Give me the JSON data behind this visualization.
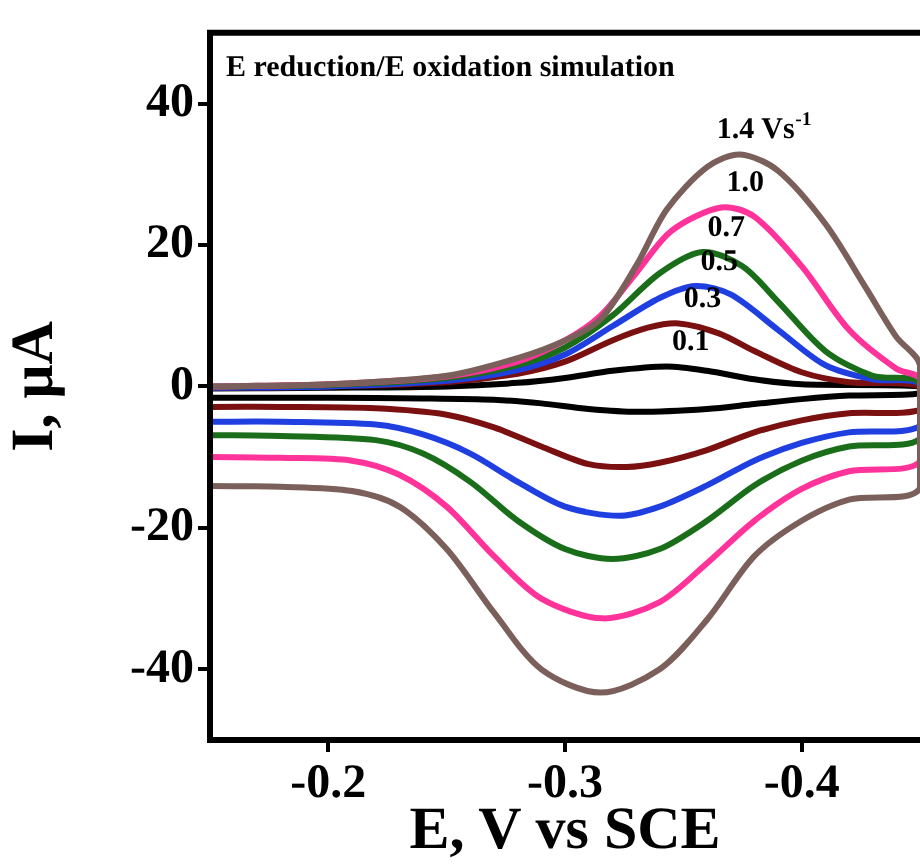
{
  "chart_data": {
    "type": "line",
    "title": "E reduction/E oxidation simulation",
    "xlabel": "E, V vs SCE",
    "ylabel": "I, μA",
    "xlim": [
      -0.15,
      -0.45
    ],
    "xticks": [
      -0.2,
      -0.3,
      -0.4
    ],
    "ylim": [
      -50,
      50
    ],
    "yticks": [
      -40,
      -20,
      0,
      20,
      40
    ],
    "grid": false,
    "legend": false,
    "marker": "none",
    "line_style": "solid",
    "series": [
      {
        "name": "1.4 Vs$^{-1}$",
        "color": "#7b5f5a",
        "x": [
          -0.15,
          -0.2,
          -0.25,
          -0.28,
          -0.3,
          -0.315,
          -0.33,
          -0.343,
          -0.36,
          -0.374,
          -0.39,
          -0.41,
          -0.427,
          -0.44,
          -0.45,
          -0.45,
          -0.42,
          -0.4,
          -0.38,
          -0.36,
          -0.34,
          -0.315,
          -0.29,
          -0.27,
          -0.25,
          -0.23,
          -0.21,
          -0.18,
          -0.15
        ],
        "values": [
          0,
          0.3,
          1.5,
          4,
          6.5,
          9.5,
          17,
          25,
          31,
          32.8,
          30.5,
          23,
          14,
          7,
          3,
          -14.4,
          -16,
          -19,
          -24,
          -33,
          -40,
          -43.3,
          -40,
          -32,
          -23,
          -17,
          -14.8,
          -14.2,
          -14.1
        ]
      },
      {
        "name": "1.0",
        "color": "#ff3399",
        "x": [
          -0.15,
          -0.2,
          -0.25,
          -0.28,
          -0.3,
          -0.315,
          -0.33,
          -0.345,
          -0.366,
          -0.38,
          -0.4,
          -0.42,
          -0.44,
          -0.45,
          -0.45,
          -0.42,
          -0.4,
          -0.38,
          -0.36,
          -0.34,
          -0.316,
          -0.29,
          -0.27,
          -0.25,
          -0.23,
          -0.21,
          -0.18,
          -0.15
        ],
        "values": [
          0,
          0.3,
          1.4,
          3.5,
          6.5,
          10,
          16,
          22,
          25.3,
          24,
          17,
          8,
          2.5,
          1,
          -10.6,
          -12,
          -14.5,
          -19,
          -25,
          -30.5,
          -32.8,
          -30,
          -24,
          -17,
          -12.5,
          -10.5,
          -10.1,
          -10
        ]
      },
      {
        "name": "0.7",
        "color": "#1a6e1a",
        "x": [
          -0.15,
          -0.2,
          -0.25,
          -0.28,
          -0.3,
          -0.32,
          -0.34,
          -0.358,
          -0.375,
          -0.39,
          -0.41,
          -0.43,
          -0.45,
          -0.45,
          -0.42,
          -0.4,
          -0.38,
          -0.36,
          -0.34,
          -0.32,
          -0.3,
          -0.28,
          -0.26,
          -0.24,
          -0.22,
          -0.18,
          -0.15
        ],
        "values": [
          0,
          0.2,
          1.2,
          3,
          5.5,
          10,
          16,
          19,
          17,
          12,
          5,
          1.5,
          0.5,
          -7.4,
          -8.5,
          -10.5,
          -14,
          -19,
          -23,
          -24.4,
          -23,
          -19,
          -13.5,
          -9.5,
          -7.6,
          -7,
          -6.9
        ]
      },
      {
        "name": "0.5",
        "color": "#1f3fe0",
        "x": [
          -0.15,
          -0.2,
          -0.25,
          -0.28,
          -0.3,
          -0.32,
          -0.34,
          -0.355,
          -0.37,
          -0.39,
          -0.41,
          -0.43,
          -0.45,
          -0.45,
          -0.42,
          -0.4,
          -0.38,
          -0.36,
          -0.34,
          -0.323,
          -0.3,
          -0.28,
          -0.26,
          -0.24,
          -0.22,
          -0.18,
          -0.15
        ],
        "values": [
          -0.2,
          0,
          0.8,
          2.3,
          4.5,
          8.5,
          12.5,
          14.2,
          13,
          8,
          3,
          1,
          0.3,
          -5.6,
          -6.5,
          -8,
          -10.5,
          -14,
          -17,
          -18.3,
          -17,
          -13.5,
          -9.5,
          -6.8,
          -5.4,
          -5,
          -5
        ]
      },
      {
        "name": "0.3",
        "color": "#7a1010",
        "x": [
          -0.15,
          -0.2,
          -0.25,
          -0.28,
          -0.3,
          -0.32,
          -0.335,
          -0.348,
          -0.365,
          -0.38,
          -0.4,
          -0.42,
          -0.45,
          -0.45,
          -0.42,
          -0.4,
          -0.38,
          -0.36,
          -0.34,
          -0.326,
          -0.31,
          -0.29,
          -0.27,
          -0.25,
          -0.22,
          -0.18,
          -0.15
        ],
        "values": [
          -0.2,
          0,
          0.6,
          1.8,
          3.5,
          6.5,
          8.3,
          8.9,
          7.5,
          5,
          2,
          0.6,
          0,
          -3.3,
          -3.8,
          -4.8,
          -6.5,
          -9,
          -10.8,
          -11.4,
          -11,
          -8.5,
          -5.8,
          -4,
          -3.1,
          -2.9,
          -2.9
        ]
      },
      {
        "name": "0.1",
        "color": "#000000",
        "x": [
          -0.15,
          -0.2,
          -0.25,
          -0.28,
          -0.3,
          -0.32,
          -0.343,
          -0.36,
          -0.38,
          -0.4,
          -0.45,
          -0.45,
          -0.42,
          -0.4,
          -0.38,
          -0.36,
          -0.331,
          -0.31,
          -0.29,
          -0.27,
          -0.24,
          -0.2,
          -0.15
        ],
        "values": [
          -0.3,
          -0.2,
          0,
          0.5,
          1.2,
          2.2,
          2.8,
          2.2,
          1,
          0.3,
          0,
          -1,
          -1.3,
          -1.8,
          -2.5,
          -3.2,
          -3.6,
          -3.2,
          -2.4,
          -1.9,
          -1.7,
          -1.6,
          -1.6
        ]
      }
    ]
  }
}
